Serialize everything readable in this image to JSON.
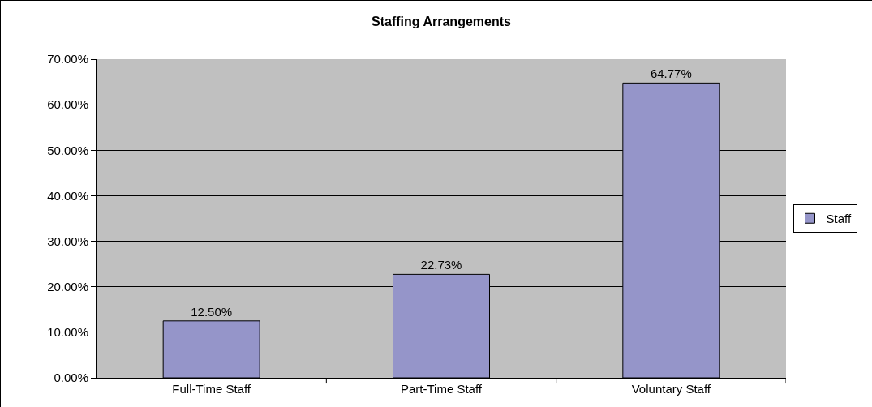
{
  "chart_data": {
    "type": "bar",
    "title": "Staffing Arrangements",
    "categories": [
      "Full-Time Staff",
      "Part-Time Staff",
      "Voluntary Staff"
    ],
    "series": [
      {
        "name": "Staff",
        "color": "#9595c9",
        "values": [
          12.5,
          22.73,
          64.77
        ],
        "value_labels": [
          "12.50%",
          "22.73%",
          "64.77%"
        ]
      }
    ],
    "ylim": [
      0,
      70
    ],
    "yticks": [
      {
        "value": 0,
        "label": "0.00%"
      },
      {
        "value": 10,
        "label": "10.00%"
      },
      {
        "value": 20,
        "label": "20.00%"
      },
      {
        "value": 30,
        "label": "30.00%"
      },
      {
        "value": 40,
        "label": "40.00%"
      },
      {
        "value": 50,
        "label": "50.00%"
      },
      {
        "value": 60,
        "label": "60.00%"
      },
      {
        "value": 70,
        "label": "70.00%"
      }
    ],
    "grid": "y",
    "legend": "right"
  }
}
